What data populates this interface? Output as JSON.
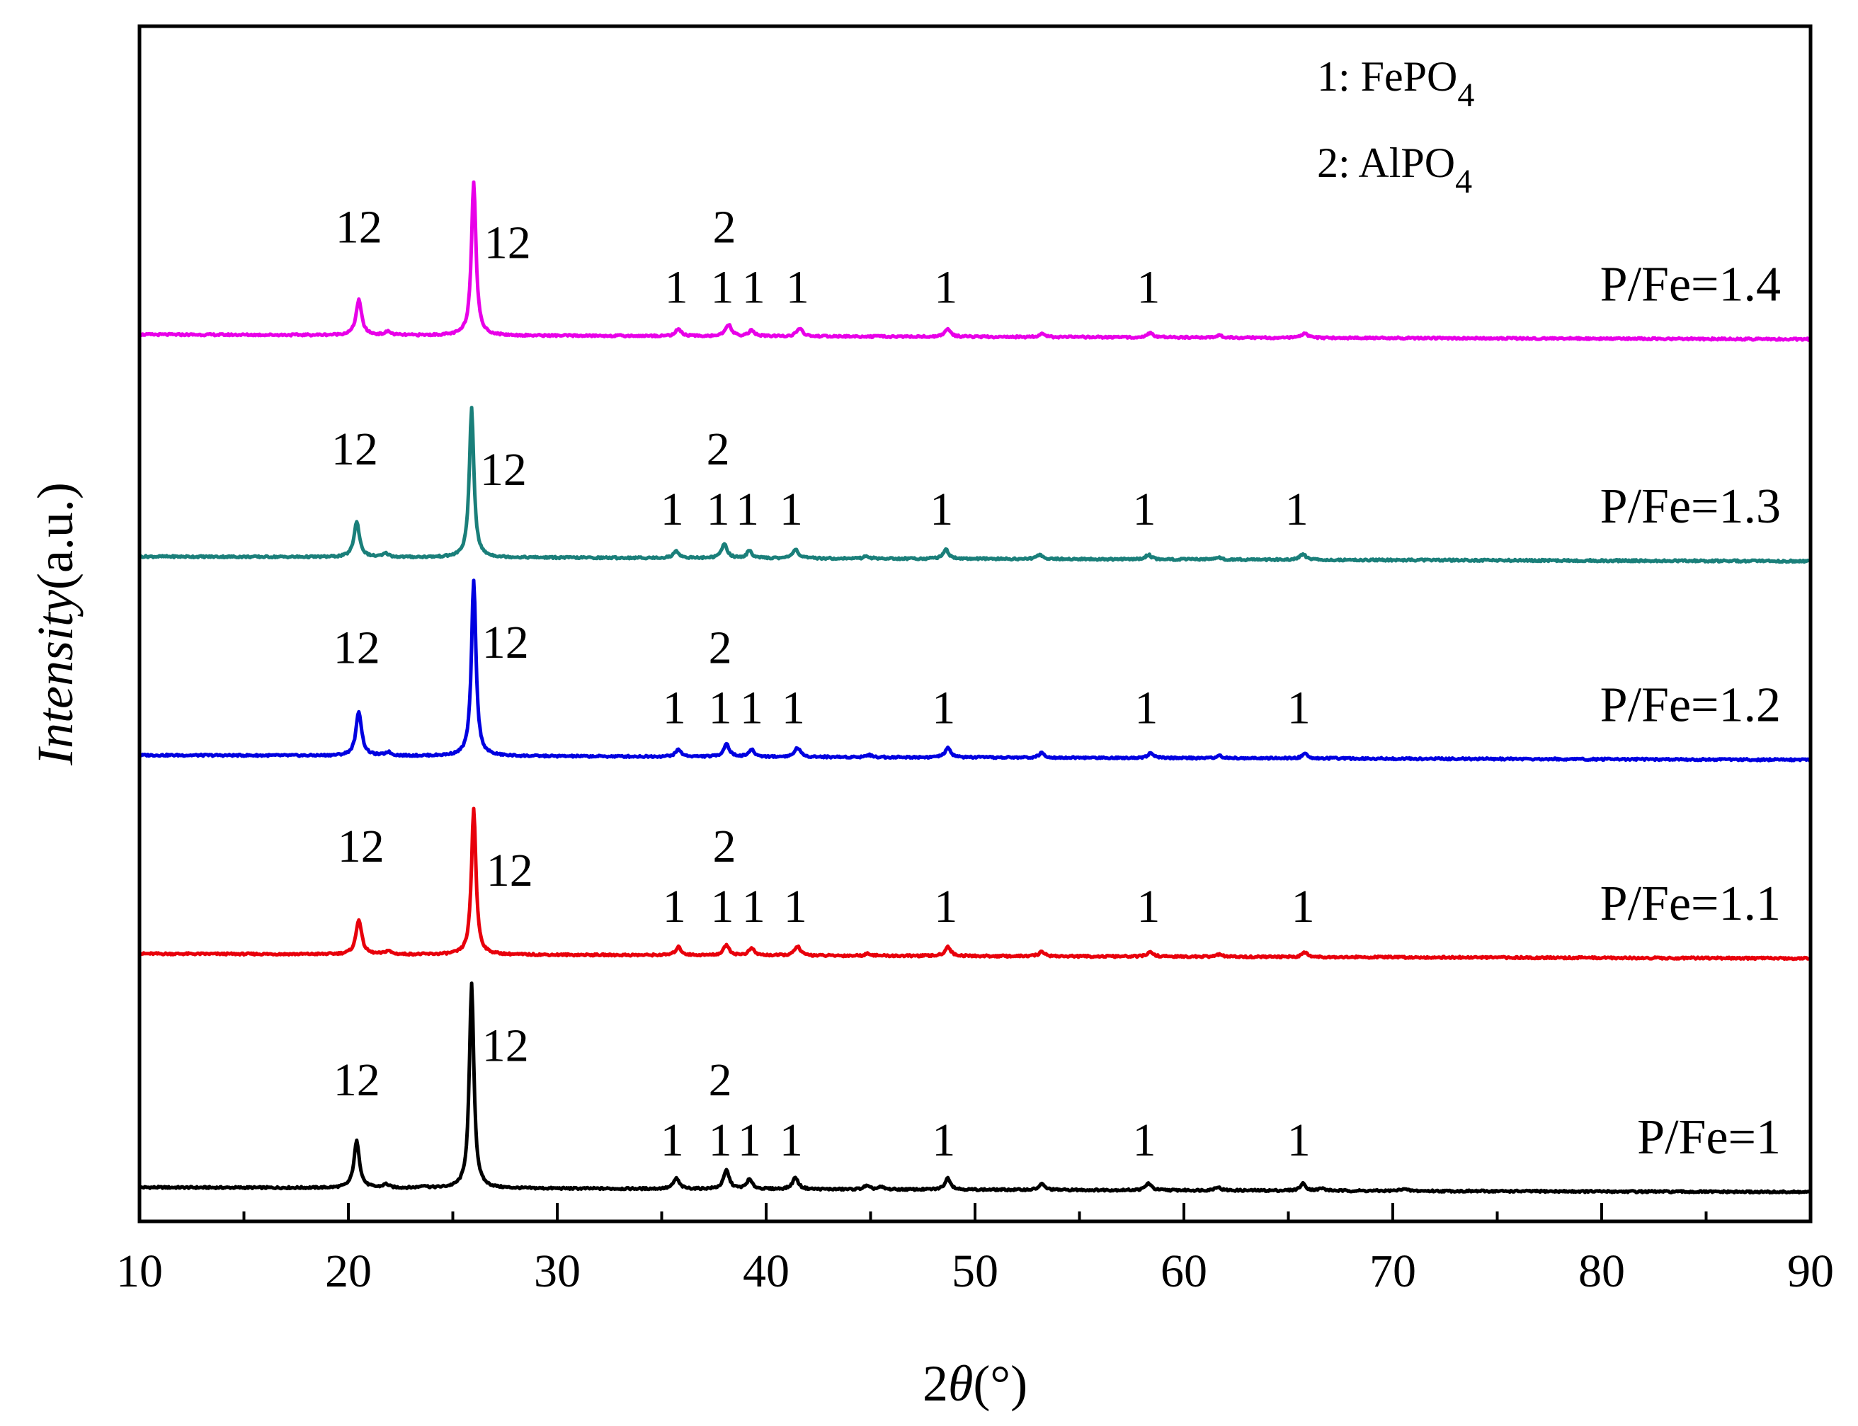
{
  "chart_data": {
    "type": "line",
    "title": "",
    "xlabel": {
      "prefix": "2",
      "symbol": "θ",
      "suffix": "(°)"
    },
    "ylabel": {
      "italic": "Intensity",
      "rest": "(a.u.)"
    },
    "xlim": [
      10,
      90
    ],
    "x_ticks": [
      10,
      20,
      30,
      40,
      50,
      60,
      70,
      80,
      90
    ],
    "x_minor_ticks": [
      15,
      25,
      35,
      45,
      55,
      65,
      75,
      85
    ],
    "grid": false,
    "legend_position": "top-center",
    "legend": [
      {
        "text": "1: FePO",
        "sub": "4"
      },
      {
        "text": "2: AlPO",
        "sub": "4"
      }
    ],
    "series": [
      {
        "name": "P/Fe=1",
        "color": "#000000",
        "offset": 0,
        "drift": -4,
        "peaks": [
          [
            20.4,
            40
          ],
          [
            21.8,
            3
          ],
          [
            23.6,
            2
          ],
          [
            25.9,
            175
          ],
          [
            35.7,
            9
          ],
          [
            38.1,
            16
          ],
          [
            39.2,
            8
          ],
          [
            41.4,
            10
          ],
          [
            44.8,
            3
          ],
          [
            45.5,
            2
          ],
          [
            48.7,
            10
          ],
          [
            53.2,
            5
          ],
          [
            58.3,
            6
          ],
          [
            61.6,
            3
          ],
          [
            65.7,
            6
          ],
          [
            66.6,
            2
          ],
          [
            70.5,
            2
          ]
        ],
        "peak_labels": [
          {
            "x": 20.4,
            "text": "12",
            "row": 1
          },
          {
            "x": 26.4,
            "text": "12",
            "row": 2
          },
          {
            "x": 35.5,
            "text": "1",
            "row": 0
          },
          {
            "x": 37.8,
            "text": "2",
            "row": 1
          },
          {
            "x": 37.8,
            "text": "1",
            "row": 0
          },
          {
            "x": 39.2,
            "text": "1",
            "row": 0
          },
          {
            "x": 41.2,
            "text": "1",
            "row": 0
          },
          {
            "x": 48.5,
            "text": "1",
            "row": 0
          },
          {
            "x": 58.1,
            "text": "1",
            "row": 0
          },
          {
            "x": 65.5,
            "text": "1",
            "row": 0
          }
        ]
      },
      {
        "name": "P/Fe=1.1",
        "color": "#e8000b",
        "offset": 200,
        "drift": -4,
        "peaks": [
          [
            20.5,
            30
          ],
          [
            21.9,
            3
          ],
          [
            26.0,
            125
          ],
          [
            35.8,
            7
          ],
          [
            38.1,
            9
          ],
          [
            39.3,
            6
          ],
          [
            41.5,
            8
          ],
          [
            44.9,
            2
          ],
          [
            48.7,
            8
          ],
          [
            53.2,
            4
          ],
          [
            58.4,
            4
          ],
          [
            61.7,
            2
          ],
          [
            65.8,
            4
          ]
        ],
        "peak_labels": [
          {
            "x": 20.6,
            "text": "12",
            "row": 1
          },
          {
            "x": 26.6,
            "text": "12",
            "row": 2
          },
          {
            "x": 35.6,
            "text": "1",
            "row": 0
          },
          {
            "x": 38.0,
            "text": "2",
            "row": 1
          },
          {
            "x": 37.9,
            "text": "1",
            "row": 0
          },
          {
            "x": 39.4,
            "text": "1",
            "row": 0
          },
          {
            "x": 41.4,
            "text": "1",
            "row": 0
          },
          {
            "x": 48.6,
            "text": "1",
            "row": 0
          },
          {
            "x": 58.3,
            "text": "1",
            "row": 0
          },
          {
            "x": 65.7,
            "text": "1",
            "row": 0
          }
        ]
      },
      {
        "name": "P/Fe=1.2",
        "color": "#0000e0",
        "offset": 370,
        "drift": -4,
        "peaks": [
          [
            20.5,
            38
          ],
          [
            21.9,
            3
          ],
          [
            26.0,
            150
          ],
          [
            35.8,
            6
          ],
          [
            38.1,
            11
          ],
          [
            39.3,
            6
          ],
          [
            41.5,
            8
          ],
          [
            44.9,
            2
          ],
          [
            48.7,
            8
          ],
          [
            53.2,
            4
          ],
          [
            58.4,
            4
          ],
          [
            61.7,
            2
          ],
          [
            65.8,
            4
          ]
        ],
        "peak_labels": [
          {
            "x": 20.4,
            "text": "12",
            "row": 1
          },
          {
            "x": 26.4,
            "text": "12",
            "row": 2
          },
          {
            "x": 35.6,
            "text": "1",
            "row": 0
          },
          {
            "x": 37.8,
            "text": "2",
            "row": 1
          },
          {
            "x": 37.8,
            "text": "1",
            "row": 0
          },
          {
            "x": 39.3,
            "text": "1",
            "row": 0
          },
          {
            "x": 41.3,
            "text": "1",
            "row": 0
          },
          {
            "x": 48.5,
            "text": "1",
            "row": 0
          },
          {
            "x": 58.2,
            "text": "1",
            "row": 0
          },
          {
            "x": 65.5,
            "text": "1",
            "row": 0
          }
        ]
      },
      {
        "name": "P/Fe=1.3",
        "color": "#1a7f7a",
        "offset": 540,
        "drift": -4,
        "peaks": [
          [
            20.4,
            30
          ],
          [
            21.8,
            3
          ],
          [
            25.9,
            128
          ],
          [
            35.7,
            6
          ],
          [
            38.0,
            12
          ],
          [
            39.2,
            6
          ],
          [
            41.4,
            8
          ],
          [
            44.8,
            2
          ],
          [
            48.6,
            8
          ],
          [
            53.1,
            4
          ],
          [
            58.3,
            4
          ],
          [
            61.6,
            2
          ],
          [
            65.7,
            5
          ]
        ],
        "peak_labels": [
          {
            "x": 20.3,
            "text": "12",
            "row": 1
          },
          {
            "x": 26.3,
            "text": "12",
            "row": 2
          },
          {
            "x": 35.5,
            "text": "1",
            "row": 0
          },
          {
            "x": 37.7,
            "text": "2",
            "row": 1
          },
          {
            "x": 37.7,
            "text": "1",
            "row": 0
          },
          {
            "x": 39.1,
            "text": "1",
            "row": 0
          },
          {
            "x": 41.2,
            "text": "1",
            "row": 0
          },
          {
            "x": 48.4,
            "text": "1",
            "row": 0
          },
          {
            "x": 58.1,
            "text": "1",
            "row": 0
          },
          {
            "x": 65.4,
            "text": "1",
            "row": 0
          }
        ]
      },
      {
        "name": "P/Fe=1.4",
        "color": "#e800e8",
        "offset": 730,
        "drift": -4,
        "peaks": [
          [
            20.5,
            30
          ],
          [
            21.9,
            3
          ],
          [
            26.0,
            132
          ],
          [
            35.8,
            6
          ],
          [
            38.2,
            10
          ],
          [
            39.3,
            5
          ],
          [
            41.6,
            7
          ],
          [
            48.7,
            7
          ],
          [
            53.2,
            3
          ],
          [
            58.4,
            4
          ],
          [
            61.7,
            2
          ],
          [
            65.8,
            4
          ]
        ],
        "peak_labels": [
          {
            "x": 20.5,
            "text": "12",
            "row": 1
          },
          {
            "x": 26.5,
            "text": "12",
            "row": 2
          },
          {
            "x": 35.7,
            "text": "1",
            "row": 0
          },
          {
            "x": 38.0,
            "text": "2",
            "row": 1
          },
          {
            "x": 37.9,
            "text": "1",
            "row": 0
          },
          {
            "x": 39.4,
            "text": "1",
            "row": 0
          },
          {
            "x": 41.5,
            "text": "1",
            "row": 0
          },
          {
            "x": 48.6,
            "text": "1",
            "row": 0
          },
          {
            "x": 58.3,
            "text": "1",
            "row": 0
          }
        ]
      }
    ]
  }
}
